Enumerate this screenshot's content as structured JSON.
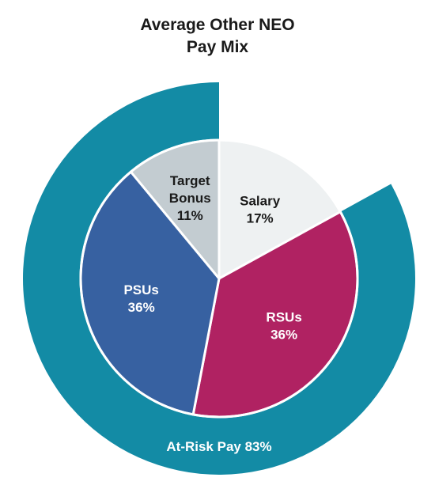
{
  "chart_data": {
    "type": "pie",
    "title_lines": [
      "Average Other NEO",
      "Pay Mix"
    ],
    "slices": [
      {
        "label_lines": [
          "Salary",
          "17%"
        ],
        "value": 17,
        "color": "#eef1f2",
        "text_color": "#1a1a1a"
      },
      {
        "label_lines": [
          "RSUs",
          "36%"
        ],
        "value": 36,
        "color": "#b02262",
        "text_color": "#ffffff"
      },
      {
        "label_lines": [
          "PSUs",
          "36%"
        ],
        "value": 36,
        "color": "#3761a1",
        "text_color": "#ffffff"
      },
      {
        "label_lines": [
          "Target",
          "Bonus",
          "11%"
        ],
        "value": 11,
        "color": "#c3ccd1",
        "text_color": "#1a1a1a"
      }
    ],
    "outer_ring": {
      "label": "At-Risk Pay 83%",
      "value": 83,
      "color": "#138ba5",
      "text_color": "#ffffff"
    }
  }
}
